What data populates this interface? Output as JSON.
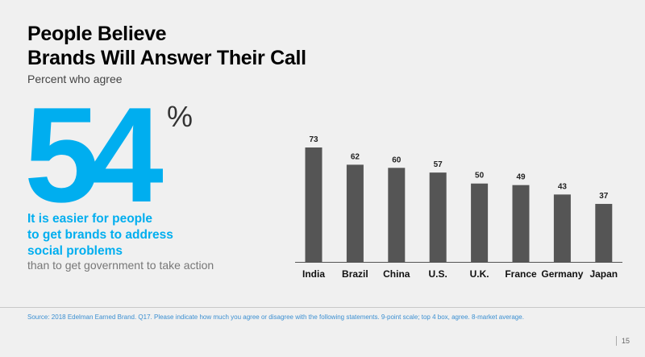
{
  "title": {
    "line1": "People Believe",
    "line2": "Brands Will Answer Their Call"
  },
  "subtitle": "Percent who agree",
  "headline_stat": {
    "value": "54",
    "unit": "%",
    "color": "#00aeef",
    "statement_bold": [
      "It is easier for people",
      "to get brands to address",
      "social problems"
    ],
    "statement_light": "than to get government to take action"
  },
  "chart_data": {
    "type": "bar",
    "categories": [
      "India",
      "Brazil",
      "China",
      "U.S.",
      "U.K.",
      "France",
      "Germany",
      "Japan"
    ],
    "values": [
      73,
      62,
      60,
      57,
      50,
      49,
      43,
      37
    ],
    "title": "",
    "xlabel": "",
    "ylabel": "",
    "ylim": [
      0,
      73
    ],
    "bar_color": "#555555",
    "grid": false,
    "data_labels": true
  },
  "footer": {
    "source": "Source: 2018 Edelman Earned Brand. Q17. Please indicate how much you agree or disagree with the following statements. 9-point scale; top 4 box, agree. 8-market average.",
    "page_number": "15"
  }
}
